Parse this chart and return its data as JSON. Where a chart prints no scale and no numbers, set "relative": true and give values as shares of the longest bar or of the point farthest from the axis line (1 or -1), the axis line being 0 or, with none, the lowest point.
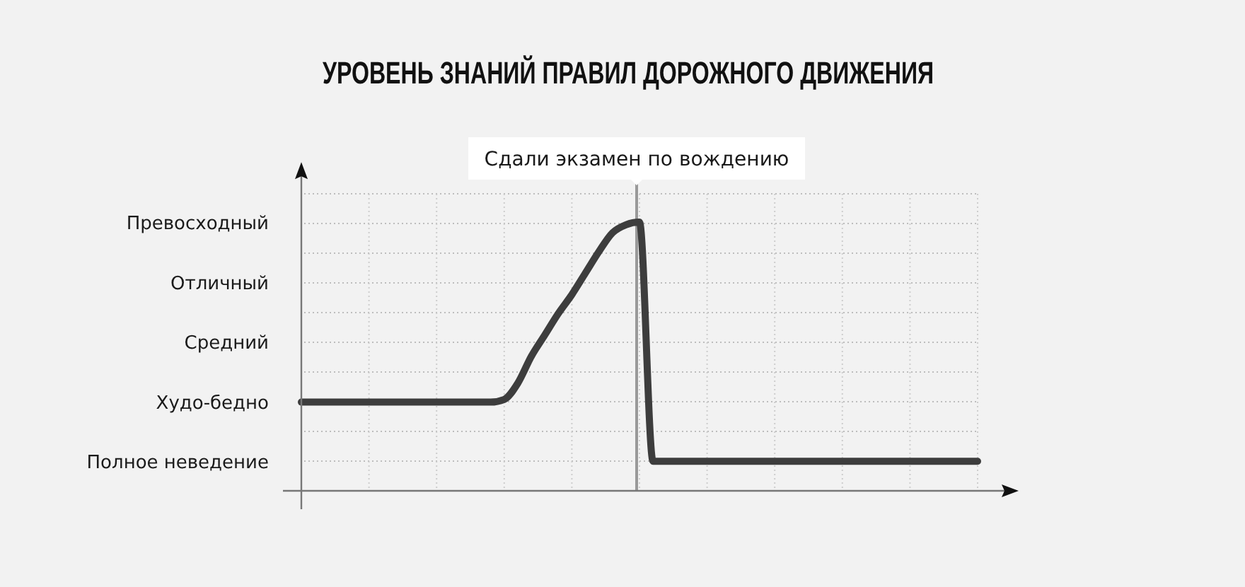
{
  "chart_data": {
    "type": "line",
    "title": "УРОВЕНЬ ЗНАНИЙ ПРАВИЛ ДОРОЖНОГО ДВИЖЕНИЯ",
    "categories": [
      null,
      null,
      null,
      null,
      null,
      null,
      null,
      null,
      null,
      null,
      null,
      null,
      null,
      null,
      null,
      null,
      null,
      null,
      null,
      null,
      null,
      null,
      null,
      null,
      null,
      null,
      null,
      null,
      null,
      null,
      null,
      null,
      null,
      null,
      null,
      null,
      null,
      null,
      null,
      null,
      null,
      null,
      null,
      null,
      null,
      null,
      null,
      null,
      null,
      null,
      null
    ],
    "series": [
      {
        "color": "#3d3d3d",
        "values": [
          0.33,
          0.33,
          0.33,
          0.33,
          0.33,
          0.33,
          0.33,
          0.33,
          0.33,
          0.33,
          0.33,
          0.33,
          0.33,
          0.33,
          0.33,
          0.34,
          0.4,
          0.5,
          0.58,
          0.66,
          0.73,
          0.81,
          0.89,
          0.96,
          0.99,
          1,
          0.11,
          0.11,
          0.11,
          0.11,
          0.11,
          0.11,
          0.11,
          0.11,
          0.11,
          0.11,
          0.11,
          0.11,
          0.11,
          0.11,
          0.11,
          0.11,
          0.11,
          0.11,
          0.11,
          0.11,
          0.11,
          0.11,
          0.11,
          0.11,
          0.11
        ]
      }
    ],
    "relative": true,
    "grid": true,
    "marker": "none",
    "line_style": "solid",
    "annotations": [
      "Сдали экзамен по вождению",
      "Превосходный",
      "Отличный",
      "Средний",
      "Худо-бедно",
      "Полное неведение"
    ]
  }
}
